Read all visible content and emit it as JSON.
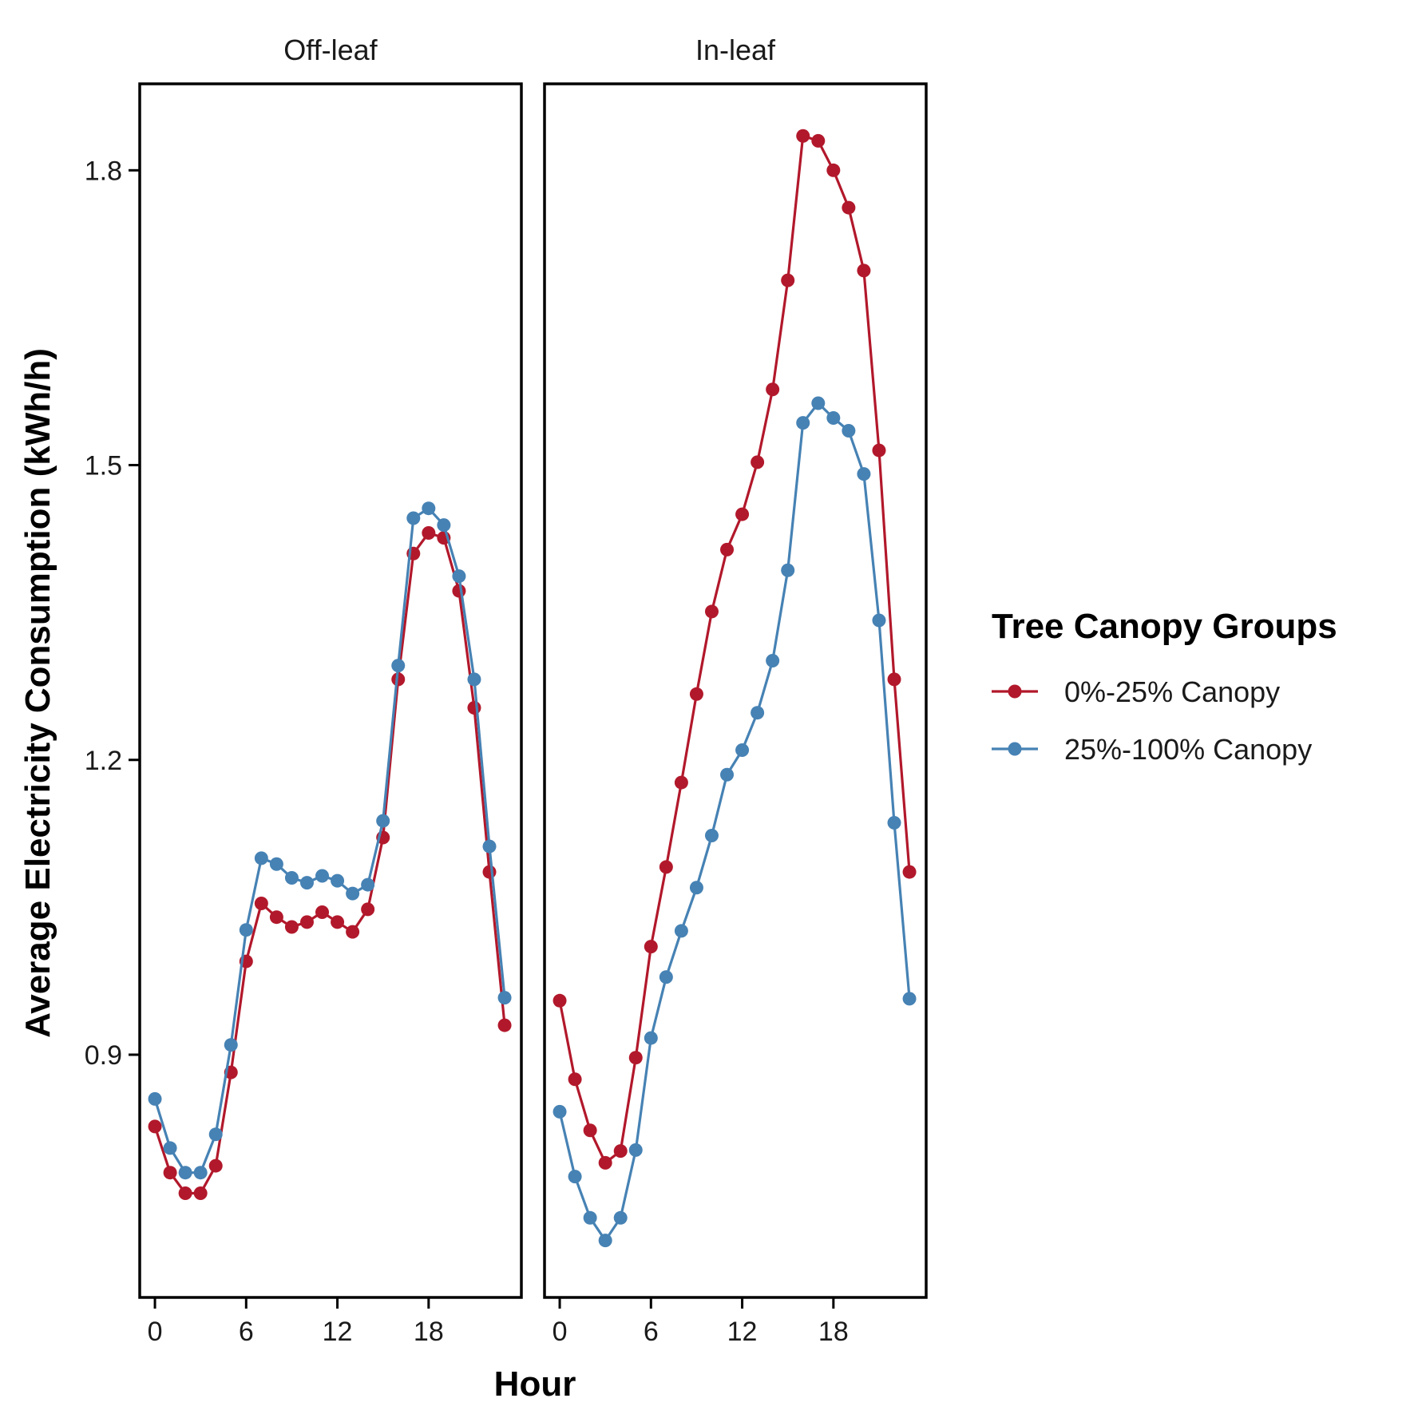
{
  "chart_data": {
    "type": "line",
    "xlabel": "Hour",
    "ylabel": "Average Electricity Consumption (kWh/h)",
    "ylim": [
      0.653,
      1.888
    ],
    "yticks": [
      0.9,
      1.2,
      1.5,
      1.8
    ],
    "ytick_labels": [
      "0.9",
      "1.2",
      "1.5",
      "1.8"
    ],
    "xlim": [
      -1.0,
      24.1
    ],
    "xticks": [
      0,
      6,
      12,
      18
    ],
    "xtick_labels": [
      "0",
      "6",
      "12",
      "18"
    ],
    "grid": false,
    "legend": {
      "title": "Tree Canopy Groups",
      "position": "right"
    },
    "colors": {
      "0%-25% Canopy": "#B2182B",
      "25%-100% Canopy": "#4682B4"
    },
    "facets": [
      {
        "title": "Off-leaf",
        "x": [
          0,
          1,
          2,
          3,
          4,
          5,
          6,
          7,
          8,
          9,
          10,
          11,
          12,
          13,
          14,
          15,
          16,
          17,
          18,
          19,
          20,
          21,
          22,
          23
        ],
        "series": [
          {
            "name": "0%-25% Canopy",
            "values": [
              0.827,
              0.78,
              0.759,
              0.759,
              0.787,
              0.882,
              0.995,
              1.054,
              1.04,
              1.03,
              1.035,
              1.045,
              1.035,
              1.025,
              1.048,
              1.121,
              1.282,
              1.41,
              1.431,
              1.426,
              1.372,
              1.253,
              1.086,
              0.93
            ]
          },
          {
            "name": "25%-100% Canopy",
            "values": [
              0.855,
              0.805,
              0.78,
              0.78,
              0.819,
              0.91,
              1.027,
              1.1,
              1.094,
              1.08,
              1.075,
              1.082,
              1.077,
              1.064,
              1.073,
              1.138,
              1.296,
              1.446,
              1.456,
              1.439,
              1.387,
              1.282,
              1.112,
              0.958
            ]
          }
        ]
      },
      {
        "title": "In-leaf",
        "x": [
          0,
          1,
          2,
          3,
          4,
          5,
          6,
          7,
          8,
          9,
          10,
          11,
          12,
          13,
          14,
          15,
          16,
          17,
          18,
          19,
          20,
          21,
          22,
          23
        ],
        "series": [
          {
            "name": "0%-25% Canopy",
            "values": [
              0.955,
              0.875,
              0.823,
              0.79,
              0.802,
              0.897,
              1.01,
              1.091,
              1.177,
              1.267,
              1.351,
              1.414,
              1.45,
              1.503,
              1.577,
              1.688,
              1.835,
              1.83,
              1.8,
              1.762,
              1.698,
              1.515,
              1.282,
              1.086
            ]
          },
          {
            "name": "25%-100% Canopy",
            "values": [
              0.842,
              0.776,
              0.734,
              0.711,
              0.734,
              0.803,
              0.917,
              0.979,
              1.026,
              1.07,
              1.123,
              1.185,
              1.21,
              1.248,
              1.301,
              1.393,
              1.543,
              1.563,
              1.548,
              1.535,
              1.491,
              1.342,
              1.136,
              0.957
            ]
          }
        ]
      }
    ]
  }
}
